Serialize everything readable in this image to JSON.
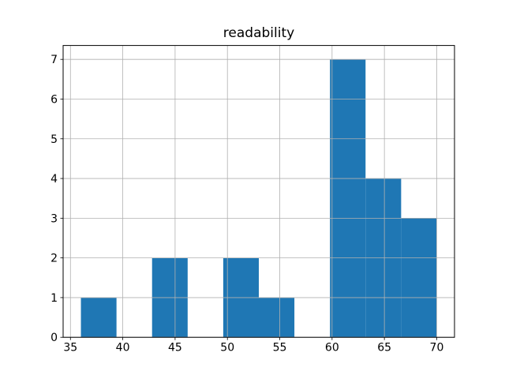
{
  "chart_data": {
    "type": "bar",
    "subtype": "histogram",
    "title": "readability",
    "xlabel": "",
    "ylabel": "",
    "bin_edges": [
      36.0,
      39.4,
      42.8,
      46.2,
      49.6,
      53.0,
      56.4,
      59.8,
      63.2,
      66.6,
      70.0
    ],
    "counts": [
      1,
      0,
      2,
      0,
      2,
      1,
      0,
      7,
      4,
      3
    ],
    "x_ticks": [
      35,
      40,
      45,
      50,
      55,
      60,
      65,
      70
    ],
    "y_ticks": [
      0,
      1,
      2,
      3,
      4,
      5,
      6,
      7
    ],
    "xlim": [
      34.3,
      71.7
    ],
    "ylim": [
      0,
      7.35
    ],
    "grid": true,
    "grid_above_bars": true,
    "legend": "none",
    "colors": {
      "bar": "#1f77b4",
      "grid": "#b0b0b0",
      "spine": "#000000",
      "tick_label": "#000000",
      "background": "#ffffff"
    }
  }
}
